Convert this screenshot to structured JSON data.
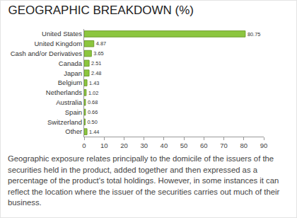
{
  "chart_data": {
    "type": "bar",
    "orientation": "horizontal",
    "title": "GEOGRAPHIC BREAKDOWN (%)",
    "categories": [
      "United States",
      "United Kingdom",
      "Cash and/or Derivatives",
      "Canada",
      "Japan",
      "Belgium",
      "Netherlands",
      "Australia",
      "Spain",
      "Switzerland",
      "Other"
    ],
    "values": [
      80.75,
      4.87,
      3.65,
      2.51,
      2.48,
      1.43,
      1.02,
      0.68,
      0.66,
      0.5,
      1.44
    ],
    "value_labels": [
      "80.75",
      "4.87",
      "3.65",
      "2.51",
      "2.48",
      "1.43",
      "1.02",
      "0.68",
      "0.66",
      "0.50",
      "1.44"
    ],
    "data_labels": true,
    "color": "#8cc63f",
    "xlim": [
      0,
      90
    ],
    "xticks": [
      0,
      10,
      20,
      30,
      40,
      50,
      60,
      70,
      80,
      90
    ],
    "grid": false,
    "annotations": [
      "Geographic exposure relates principally to the domicile of the issuers of the securities held in the product, added together and then expressed as a percentage of the product's total holdings. However, in some instances it can reflect the location where the issuer of the securities carries out much of their business."
    ]
  }
}
